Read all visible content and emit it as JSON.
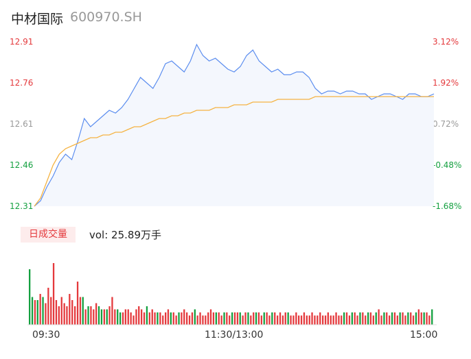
{
  "stock": {
    "name": "中材国际",
    "code": "600970.SH"
  },
  "price_axis": [
    "12.91",
    "12.76",
    "12.61",
    "12.46",
    "12.31"
  ],
  "pct_axis": [
    "3.12%",
    "1.92%",
    "0.72%",
    "-0.48%",
    "-1.68%"
  ],
  "volume": {
    "badge": "日成交量",
    "text": "vol: 25.89万手"
  },
  "time_axis": [
    "09:30",
    "11:30/13:00",
    "15:00"
  ],
  "colors": {
    "up": "#e4393c",
    "down": "#14a040",
    "price_line": "#5b8def",
    "avg_line": "#f5b342"
  },
  "chart_data": {
    "type": "line",
    "ylim": [
      12.31,
      12.91
    ],
    "series": [
      {
        "values": [
          12.31,
          12.33,
          12.38,
          12.42,
          12.47,
          12.5,
          12.48,
          12.55,
          12.63,
          12.6,
          12.62,
          12.64,
          12.66,
          12.65,
          12.67,
          12.7,
          12.74,
          12.78,
          12.76,
          12.74,
          12.78,
          12.83,
          12.84,
          12.82,
          12.8,
          12.84,
          12.9,
          12.86,
          12.84,
          12.85,
          12.83,
          12.81,
          12.8,
          12.82,
          12.86,
          12.88,
          12.84,
          12.82,
          12.8,
          12.81,
          12.79,
          12.79,
          12.8,
          12.8,
          12.78,
          12.74,
          12.72,
          12.73,
          12.73,
          12.72,
          12.73,
          12.73,
          12.72,
          12.72,
          12.7,
          12.71,
          12.72,
          12.72,
          12.71,
          12.7,
          12.72,
          12.72,
          12.71,
          12.71,
          12.72
        ]
      },
      {
        "values": [
          12.31,
          12.34,
          12.4,
          12.46,
          12.5,
          12.52,
          12.53,
          12.54,
          12.55,
          12.56,
          12.56,
          12.57,
          12.57,
          12.58,
          12.58,
          12.59,
          12.6,
          12.6,
          12.61,
          12.62,
          12.63,
          12.63,
          12.64,
          12.64,
          12.65,
          12.65,
          12.66,
          12.66,
          12.66,
          12.67,
          12.67,
          12.67,
          12.68,
          12.68,
          12.68,
          12.69,
          12.69,
          12.69,
          12.69,
          12.7,
          12.7,
          12.7,
          12.7,
          12.7,
          12.7,
          12.71,
          12.71,
          12.71,
          12.71,
          12.71,
          12.71,
          12.71,
          12.71,
          12.71,
          12.71,
          12.71,
          12.71,
          12.71,
          12.71,
          12.71,
          12.71,
          12.71,
          12.71,
          12.71,
          12.71
        ]
      }
    ],
    "volume_series": [
      {
        "name": "up",
        "values": [
          9,
          7,
          8,
          6,
          10,
          8,
          7,
          12,
          9,
          20,
          8,
          6,
          9,
          7,
          6,
          10,
          8,
          6,
          14,
          9,
          7,
          5,
          4,
          6,
          5,
          7,
          4,
          3,
          5,
          4,
          6,
          9,
          5,
          4,
          3,
          4,
          5,
          5,
          4,
          3,
          5,
          6,
          5,
          4,
          3,
          4,
          5,
          4,
          3,
          4,
          3,
          4,
          5,
          3,
          4,
          3,
          3,
          4,
          5,
          4,
          3,
          4,
          3,
          3,
          4,
          3,
          3,
          4,
          5,
          4,
          3,
          4,
          3,
          3,
          4,
          3,
          3,
          4,
          4,
          3,
          3,
          4,
          3,
          3,
          4,
          3,
          4,
          3,
          3,
          4,
          3,
          3,
          4,
          3,
          4,
          3,
          4,
          3,
          3,
          3,
          4,
          3,
          3,
          4,
          3,
          3,
          4,
          3,
          3,
          4,
          3,
          3,
          4,
          3,
          3,
          4,
          3,
          3,
          3,
          4,
          3,
          3,
          4,
          3,
          3,
          4,
          3,
          3,
          4,
          3,
          3,
          5,
          3,
          3,
          4,
          3,
          3,
          4,
          3,
          3,
          4,
          3,
          3,
          4,
          3,
          3,
          5,
          4,
          3,
          4,
          3,
          4
        ]
      },
      {
        "name": "down",
        "values": [
          18,
          9,
          7,
          8,
          6,
          9,
          7,
          8,
          6,
          7,
          5,
          6,
          9,
          7,
          6,
          8,
          5,
          6,
          7,
          6,
          9,
          5,
          6,
          4,
          5,
          4,
          6,
          5,
          4,
          5,
          4,
          6,
          4,
          5,
          4,
          3,
          4,
          5,
          4,
          3,
          5,
          4,
          3,
          4,
          6,
          3,
          4,
          3,
          4,
          3,
          3,
          4,
          3,
          4,
          3,
          3,
          4,
          3,
          4,
          3,
          3,
          4,
          5,
          3,
          4,
          3,
          3,
          4,
          3,
          3,
          4,
          3,
          3,
          4,
          3,
          3,
          4,
          3,
          3,
          4,
          3,
          3,
          4,
          3,
          3,
          4,
          3,
          3,
          4,
          3,
          3,
          4,
          3,
          3,
          4,
          3,
          3,
          4,
          3,
          3,
          4,
          3,
          3,
          4,
          3,
          3,
          4,
          3,
          3,
          4,
          3,
          3,
          4,
          3,
          3,
          4,
          3,
          3,
          4,
          3,
          3,
          4,
          3,
          3,
          4,
          3,
          3,
          4,
          3,
          3,
          4,
          3,
          3,
          4,
          3,
          3,
          4,
          3,
          3,
          4,
          3,
          3,
          4,
          3,
          3,
          4,
          3,
          3,
          4,
          3,
          3,
          5
        ]
      }
    ]
  }
}
